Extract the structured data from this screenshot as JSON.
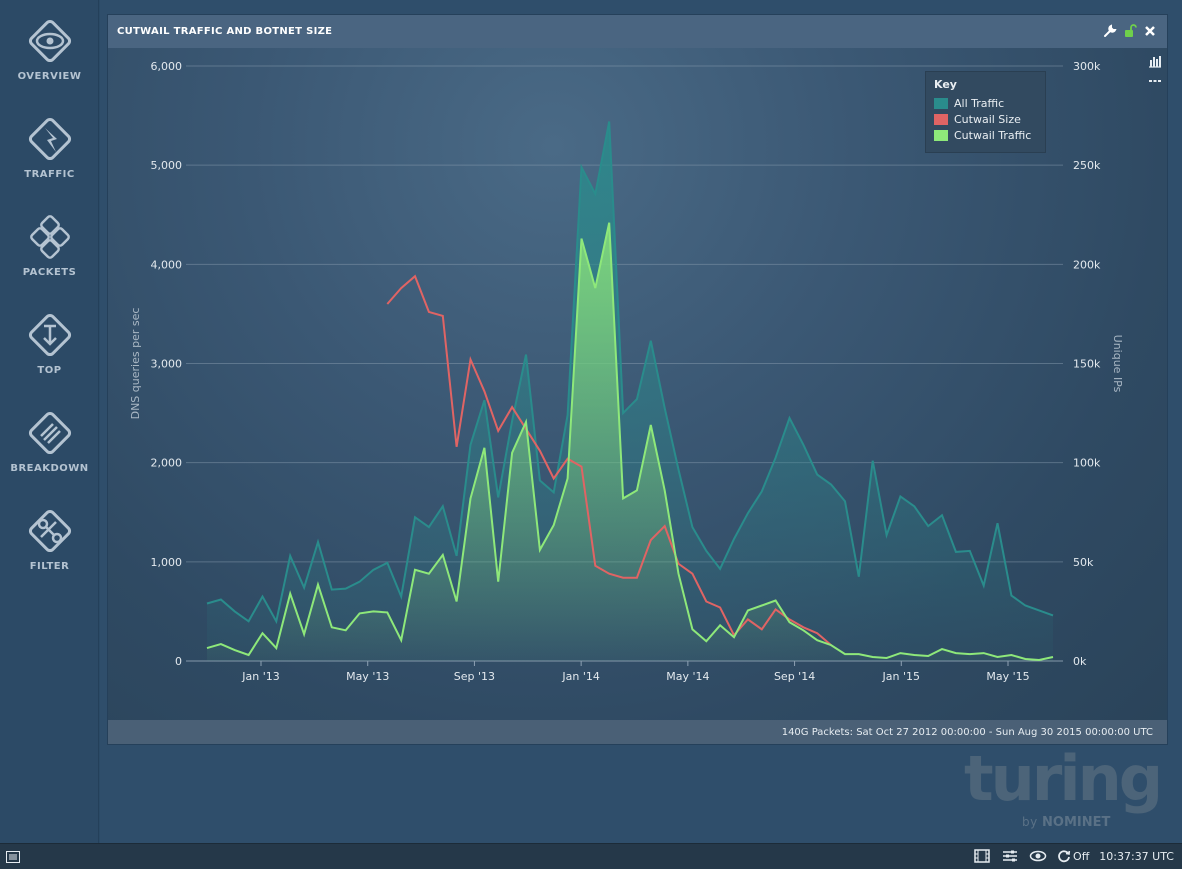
{
  "sidebar": {
    "items": [
      {
        "label": "OVERVIEW",
        "icon": "eye-icon"
      },
      {
        "label": "TRAFFIC",
        "icon": "lightning-icon"
      },
      {
        "label": "PACKETS",
        "icon": "packets-icon"
      },
      {
        "label": "TOP",
        "icon": "top-icon"
      },
      {
        "label": "BREAKDOWN",
        "icon": "list-icon"
      },
      {
        "label": "FILTER",
        "icon": "filter-icon"
      }
    ]
  },
  "panel": {
    "title": "CUTWAIL TRAFFIC AND BOTNET SIZE",
    "footer": "140G Packets: Sat Oct 27 2012 00:00:00 - Sun Aug 30 2015 00:00:00 UTC"
  },
  "colors": {
    "all_traffic": "#2a8c8c",
    "cutwail_size": "#e06464",
    "cutwail_traffic": "#8ee87a"
  },
  "chart_data": {
    "type": "area",
    "title": "CUTWAIL TRAFFIC AND BOTNET SIZE",
    "ylabel": "DNS queries per sec",
    "y2label": "Unique IPs",
    "ylim": [
      0,
      6000
    ],
    "y2lim": [
      0,
      300000
    ],
    "yticks": [
      "0",
      "1,000",
      "2,000",
      "3,000",
      "4,000",
      "5,000",
      "6,000"
    ],
    "y2ticks": [
      "0k",
      "50k",
      "100k",
      "150k",
      "200k",
      "250k",
      "300k"
    ],
    "xticks": [
      "Jan '13",
      "May '13",
      "Sep '13",
      "Jan '14",
      "May '14",
      "Sep '14",
      "Jan '15",
      "May '15"
    ],
    "legend": {
      "title": "Key",
      "position": "top-right"
    },
    "grid": true,
    "series": [
      {
        "name": "All Traffic",
        "axis": "left",
        "values": [
          580,
          620,
          500,
          400,
          650,
          400,
          1060,
          740,
          1200,
          720,
          730,
          800,
          920,
          990,
          650,
          1450,
          1350,
          1560,
          1060,
          2180,
          2630,
          1650,
          2420,
          3090,
          1820,
          1700,
          2480,
          4980,
          4710,
          5440,
          2500,
          2640,
          3230,
          2550,
          1930,
          1350,
          1110,
          930,
          1230,
          1490,
          1710,
          2050,
          2450,
          2180,
          1880,
          1780,
          1610,
          850,
          2020,
          1270,
          1660,
          1560,
          1360,
          1470,
          1100,
          1110,
          760,
          1390,
          660,
          560,
          510,
          460
        ]
      },
      {
        "name": "Cutwail Size",
        "axis": "right",
        "values": [
          null,
          null,
          null,
          null,
          null,
          null,
          null,
          null,
          null,
          null,
          null,
          null,
          null,
          180000,
          188000,
          194000,
          176000,
          174000,
          108000,
          152000,
          136000,
          116000,
          128000,
          117000,
          106000,
          92000,
          102000,
          98000,
          48000,
          44000,
          42000,
          42000,
          61000,
          68000,
          49000,
          44000,
          30000,
          27000,
          13000,
          21000,
          16000,
          26000,
          21000,
          17000,
          14000,
          8000
        ]
      },
      {
        "name": "Cutwail Traffic",
        "axis": "left",
        "values": [
          130,
          170,
          110,
          60,
          280,
          130,
          680,
          270,
          770,
          340,
          310,
          480,
          500,
          490,
          210,
          920,
          880,
          1070,
          600,
          1640,
          2150,
          800,
          2100,
          2410,
          1120,
          1370,
          1840,
          4260,
          3760,
          4420,
          1640,
          1720,
          2380,
          1720,
          880,
          320,
          200,
          360,
          240,
          510,
          560,
          610,
          390,
          310,
          210,
          160,
          70,
          70,
          40,
          30,
          80,
          60,
          50,
          120,
          80,
          70,
          80,
          40,
          60,
          20,
          10,
          40
        ]
      }
    ]
  },
  "status": {
    "refresh_label": "Off",
    "time": "10:37:37 UTC"
  },
  "logo": {
    "word": "turing",
    "by": "by",
    "brand": "NOMINET"
  }
}
